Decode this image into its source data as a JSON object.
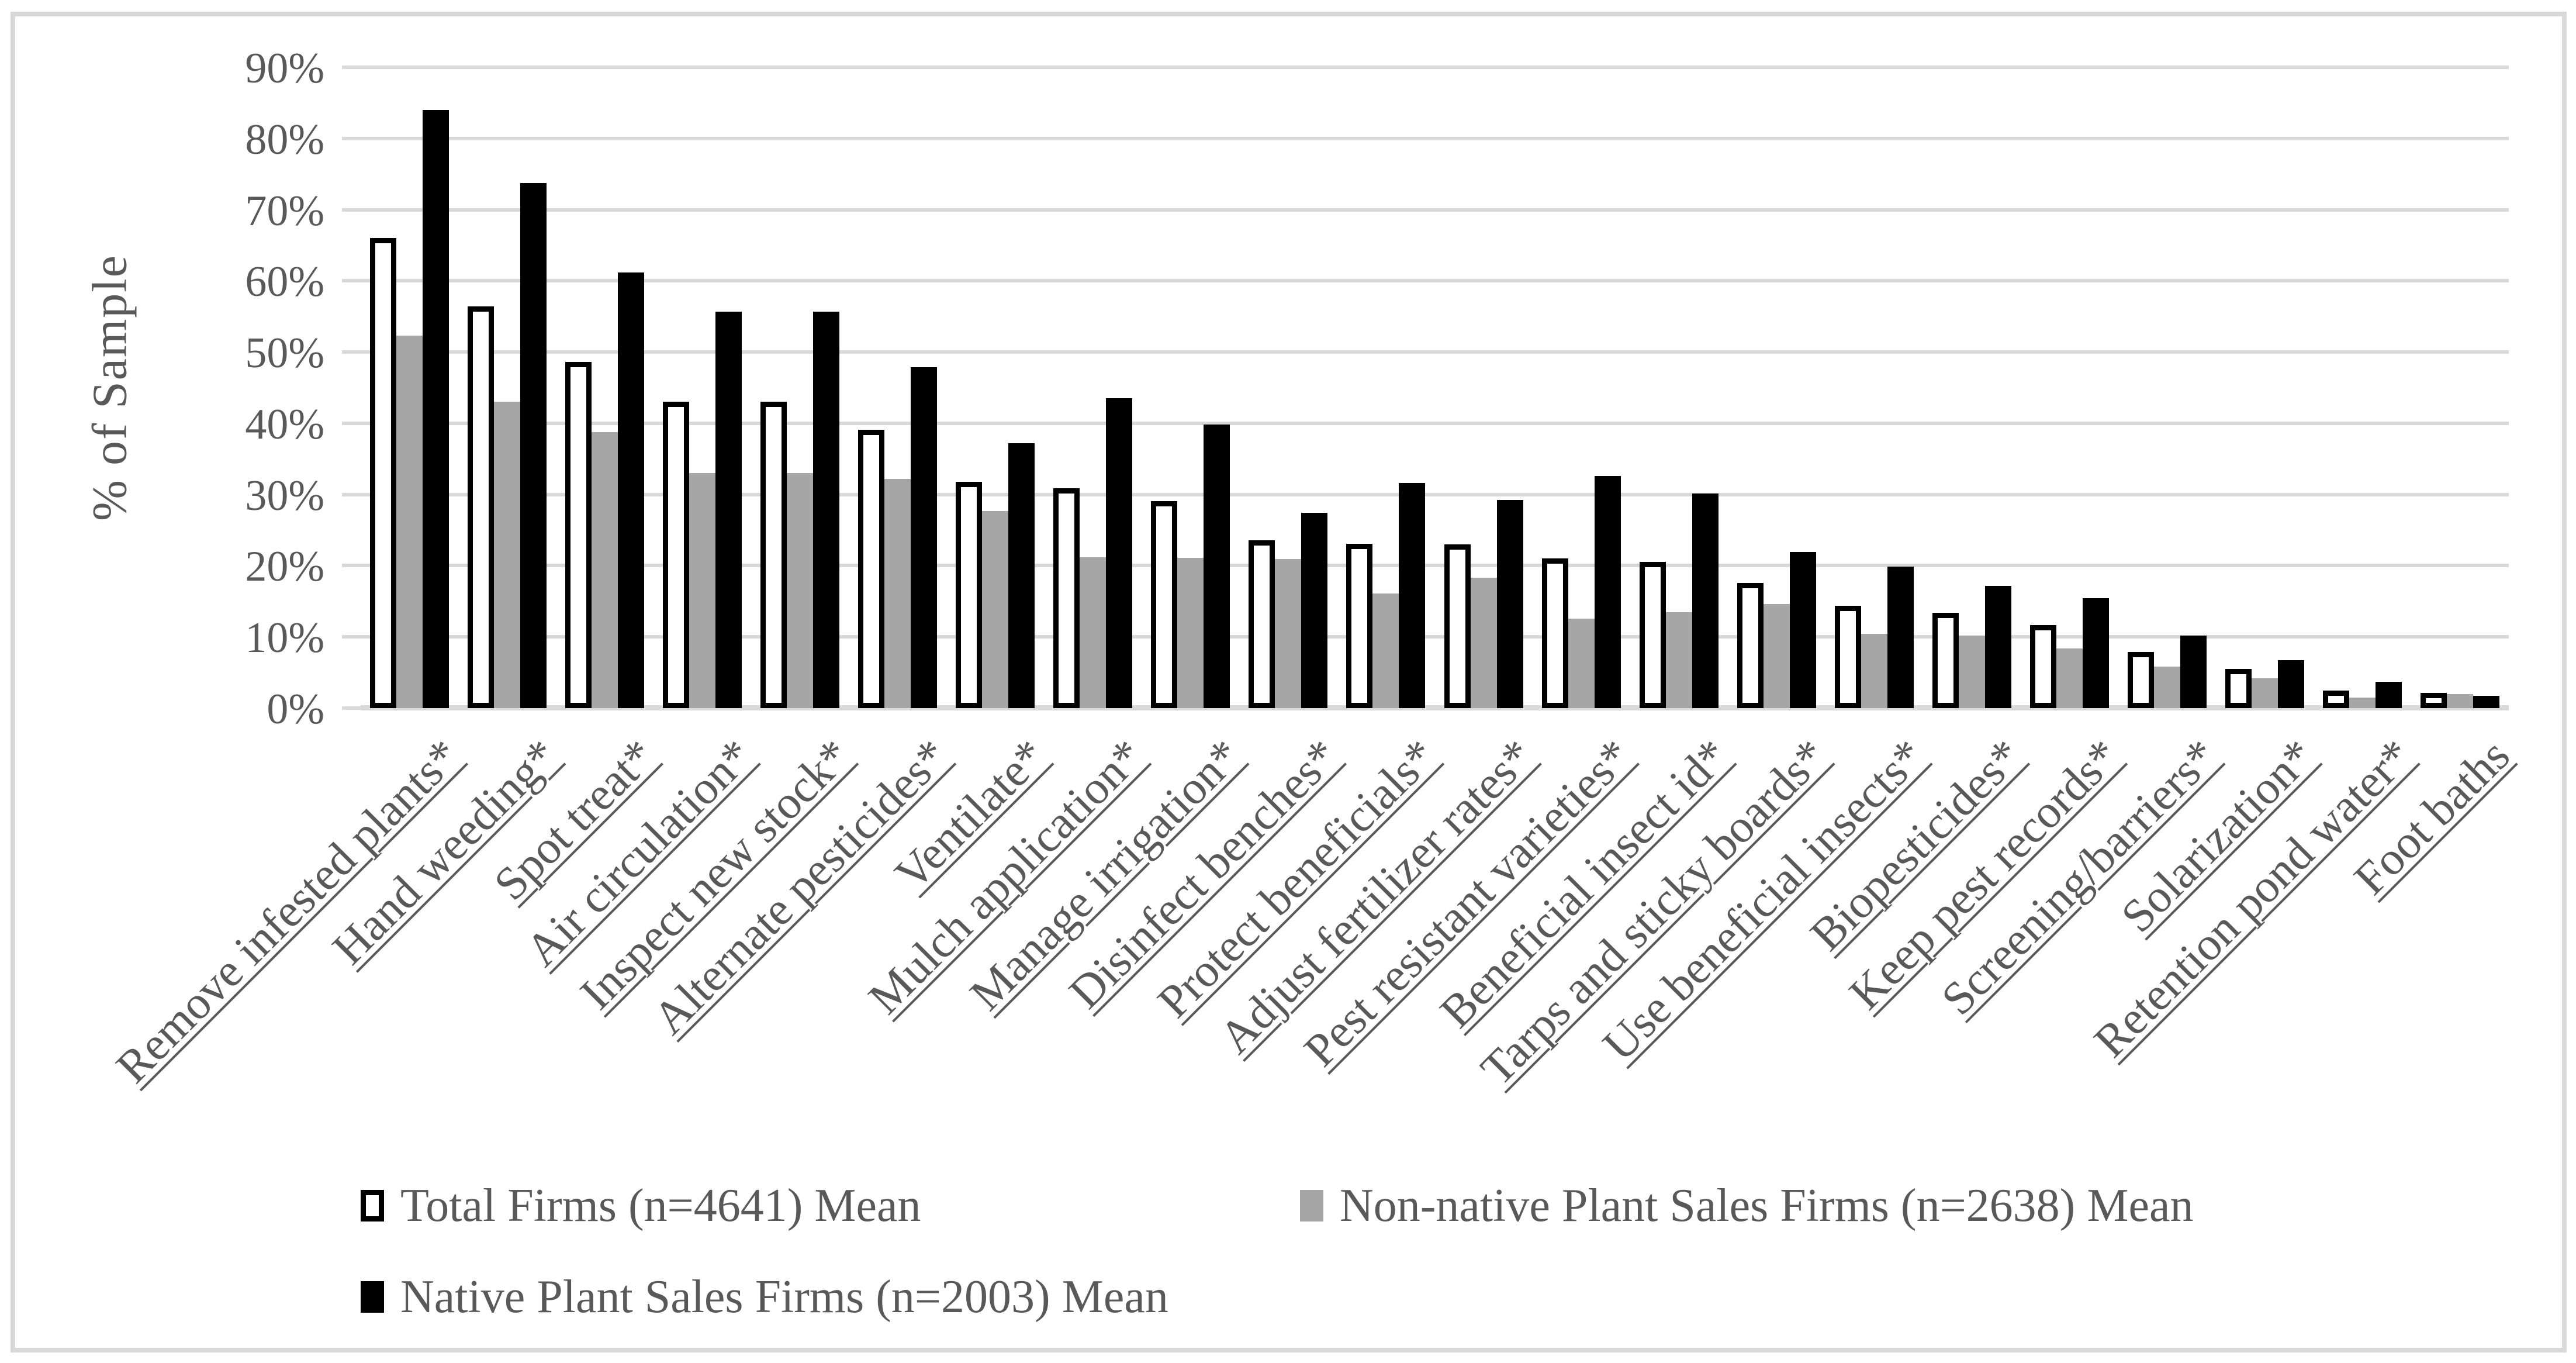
{
  "figure": {
    "background": "#FFFFFF",
    "border_color": "#D9D9D9"
  },
  "chart_data": {
    "type": "bar",
    "title": "",
    "xlabel": "",
    "ylabel": "% of Sample",
    "ylim": [
      0,
      90
    ],
    "ytick_step": 10,
    "ytick_labels": [
      "0%",
      "10%",
      "20%",
      "30%",
      "40%",
      "50%",
      "60%",
      "70%",
      "80%",
      "90%"
    ],
    "grid": "horizontal",
    "gridline_color": "#D9D9D9",
    "axis_text_color": "#595959",
    "legend_position": "bottom",
    "categories": [
      "Remove infested plants*",
      "Hand weeding*",
      "Spot treat*",
      "Air circulation*",
      "Inspect new stock*",
      "Alternate pesticides*",
      "Ventilate*",
      "Mulch application*",
      "Manage irrigation*",
      "Disinfect benches*",
      "Protect beneficials*",
      "Adjust fertilizer rates*",
      "Pest resistant varieties*",
      "Beneficial insect id*",
      "Tarps and sticky boards*",
      "Use beneficial insects*",
      "Biopesticides*",
      "Keep pest records*",
      "Screening/barriers*",
      "Solarization*",
      "Retention pond water*",
      "Foot baths"
    ],
    "series": [
      {
        "name": "Total Firms (n=4641) Mean",
        "fill": "#FFFFFF",
        "border": "#000000",
        "values": [
          66.0,
          56.4,
          48.6,
          43.0,
          43.0,
          39.1,
          31.8,
          30.9,
          29.1,
          23.6,
          23.1,
          23.0,
          21.0,
          20.5,
          17.6,
          14.4,
          13.4,
          11.7,
          7.9,
          5.5,
          2.5,
          2.1
        ]
      },
      {
        "name": "Non-native Plant Sales Firms (n=2638) Mean",
        "fill": "#A6A6A6",
        "border": "none",
        "values": [
          52.3,
          43.0,
          38.8,
          33.0,
          33.0,
          32.2,
          27.7,
          21.2,
          21.1,
          20.9,
          16.1,
          18.3,
          12.6,
          13.5,
          14.6,
          10.4,
          10.1,
          8.4,
          5.8,
          4.2,
          1.5,
          2.0
        ]
      },
      {
        "name": "Native Plant Sales Firms (n=2003) Mean",
        "fill": "#000000",
        "border": "none",
        "values": [
          84.0,
          73.7,
          61.2,
          55.7,
          55.7,
          47.9,
          37.2,
          43.5,
          39.8,
          27.4,
          31.6,
          29.2,
          32.6,
          30.1,
          21.9,
          19.9,
          17.2,
          15.4,
          10.2,
          6.7,
          3.7,
          1.7
        ]
      }
    ]
  }
}
